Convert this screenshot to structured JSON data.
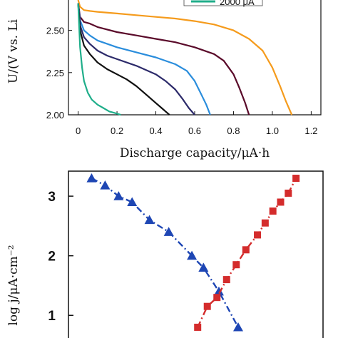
{
  "chart_data": [
    {
      "type": "line",
      "title": "",
      "xlabel": "Discharge capacity/μA·h",
      "ylabel": "U/(V vs. Li",
      "xlim": [
        -0.05,
        1.25
      ],
      "ylim": [
        2.0,
        2.68
      ],
      "xticks": [
        "0",
        "0.2",
        "0.4",
        "0.6",
        "0.8",
        "1.0",
        "1.2"
      ],
      "yticks": [
        "2.00",
        "2.25",
        "2.50"
      ],
      "legend": {
        "placement": "top-right",
        "visible_entry": "2000 μA",
        "visible_entry_color": "#1fae8a"
      },
      "series": [
        {
          "color": "#f59b1c",
          "x": [
            0.0,
            0.01,
            0.03,
            0.06,
            0.1,
            0.2,
            0.3,
            0.4,
            0.5,
            0.6,
            0.7,
            0.8,
            0.88,
            0.95,
            1.0,
            1.04,
            1.07,
            1.1
          ],
          "y": [
            2.68,
            2.64,
            2.62,
            2.615,
            2.61,
            2.6,
            2.59,
            2.58,
            2.57,
            2.555,
            2.535,
            2.5,
            2.45,
            2.38,
            2.28,
            2.17,
            2.08,
            2.0
          ]
        },
        {
          "color": "#5a0a2a",
          "x": [
            0.0,
            0.01,
            0.03,
            0.06,
            0.1,
            0.2,
            0.3,
            0.4,
            0.5,
            0.6,
            0.7,
            0.75,
            0.8,
            0.83,
            0.86,
            0.88
          ],
          "y": [
            2.66,
            2.58,
            2.55,
            2.54,
            2.52,
            2.49,
            2.47,
            2.45,
            2.43,
            2.4,
            2.36,
            2.32,
            2.24,
            2.16,
            2.07,
            2.0
          ]
        },
        {
          "color": "#2a8ddc",
          "x": [
            0.0,
            0.01,
            0.03,
            0.06,
            0.1,
            0.15,
            0.2,
            0.3,
            0.4,
            0.5,
            0.56,
            0.6,
            0.63,
            0.66,
            0.68
          ],
          "y": [
            2.66,
            2.56,
            2.5,
            2.47,
            2.44,
            2.42,
            2.4,
            2.37,
            2.34,
            2.3,
            2.26,
            2.2,
            2.13,
            2.06,
            2.0
          ]
        },
        {
          "color": "#2c2a6a",
          "x": [
            0.0,
            0.01,
            0.03,
            0.06,
            0.1,
            0.15,
            0.2,
            0.3,
            0.4,
            0.45,
            0.5,
            0.54,
            0.57,
            0.6
          ],
          "y": [
            2.66,
            2.53,
            2.46,
            2.42,
            2.38,
            2.35,
            2.33,
            2.29,
            2.24,
            2.2,
            2.15,
            2.09,
            2.04,
            2.0
          ]
        },
        {
          "color": "#111111",
          "x": [
            0.0,
            0.01,
            0.03,
            0.06,
            0.1,
            0.15,
            0.2,
            0.25,
            0.3,
            0.35,
            0.4,
            0.43,
            0.45,
            0.47
          ],
          "y": [
            2.66,
            2.5,
            2.41,
            2.36,
            2.31,
            2.27,
            2.24,
            2.21,
            2.17,
            2.12,
            2.07,
            2.04,
            2.02,
            2.0
          ]
        },
        {
          "color": "#1fae8a",
          "x": [
            0.0,
            0.01,
            0.02,
            0.03,
            0.05,
            0.07,
            0.1,
            0.13,
            0.16,
            0.19,
            0.22
          ],
          "y": [
            2.66,
            2.4,
            2.28,
            2.2,
            2.13,
            2.09,
            2.06,
            2.04,
            2.02,
            2.01,
            2.0
          ]
        }
      ]
    },
    {
      "type": "line",
      "title": "",
      "xlabel": "",
      "ylabel": "log j/μA·cm⁻²",
      "ylim": [
        0.62,
        3.42
      ],
      "yticks": [
        "1",
        "2",
        "3"
      ],
      "series": [
        {
          "color": "#1e46b4",
          "marker": "triangle",
          "x": [
            0.0,
            0.07,
            0.14,
            0.21,
            0.3,
            0.4,
            0.52,
            0.58,
            0.66,
            0.76
          ],
          "y": [
            3.3,
            3.18,
            3.0,
            2.9,
            2.6,
            2.4,
            2.0,
            1.8,
            1.4,
            0.8
          ]
        },
        {
          "color": "#d42c2c",
          "marker": "square",
          "x": [
            0.55,
            0.6,
            0.65,
            0.7,
            0.75,
            0.8,
            0.86,
            0.9,
            0.94,
            0.98,
            1.02,
            1.06
          ],
          "y": [
            0.8,
            1.15,
            1.3,
            1.6,
            1.85,
            2.1,
            2.35,
            2.55,
            2.75,
            2.9,
            3.05,
            3.3
          ]
        }
      ]
    }
  ]
}
